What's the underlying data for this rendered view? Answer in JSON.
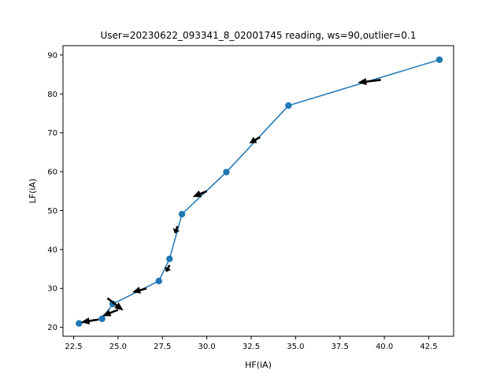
{
  "chart_data": {
    "type": "line",
    "title": "User=20230622_093341_8_02001745 reading, ws=90,outlier=0.1",
    "xlabel": "HF(iA)",
    "ylabel": "LF(iA)",
    "xlim": [
      21.9,
      43.9
    ],
    "ylim": [
      17.7,
      92.4
    ],
    "xticks": [
      "22.5",
      "25.0",
      "27.5",
      "30.0",
      "32.5",
      "35.0",
      "37.5",
      "40.0",
      "42.5"
    ],
    "yticks": [
      "20",
      "30",
      "40",
      "50",
      "60",
      "70",
      "80",
      "90"
    ],
    "grid": false,
    "series": [
      {
        "color": "#1f77b4",
        "marker": "circle",
        "points": [
          {
            "x": 43.1,
            "y": 88.8
          },
          {
            "x": 34.6,
            "y": 77.0
          },
          {
            "x": 31.1,
            "y": 59.9
          },
          {
            "x": 28.6,
            "y": 49.1
          },
          {
            "x": 27.9,
            "y": 37.6
          },
          {
            "x": 27.3,
            "y": 31.9
          },
          {
            "x": 24.7,
            "y": 26.0
          },
          {
            "x": 24.1,
            "y": 22.2
          },
          {
            "x": 22.8,
            "y": 21.0
          }
        ]
      }
    ],
    "arrows": {
      "color": "#000000",
      "items": [
        {
          "x": 39.8,
          "y": 83.6,
          "dx": -1.3,
          "dy": -0.7
        },
        {
          "x": 33.0,
          "y": 68.9,
          "dx": -0.6,
          "dy": -1.6
        },
        {
          "x": 30.0,
          "y": 55.0,
          "dx": -0.8,
          "dy": -1.5
        },
        {
          "x": 28.35,
          "y": 46.0,
          "dx": -0.15,
          "dy": -1.9
        },
        {
          "x": 27.9,
          "y": 36.0,
          "dx": -0.2,
          "dy": -1.8
        },
        {
          "x": 26.6,
          "y": 30.0,
          "dx": -0.8,
          "dy": -1.0
        },
        {
          "x": 24.4,
          "y": 27.5,
          "dx": 0.9,
          "dy": -3.2
        },
        {
          "x": 25.0,
          "y": 24.5,
          "dx": -0.9,
          "dy": -1.6
        },
        {
          "x": 23.9,
          "y": 22.0,
          "dx": -1.0,
          "dy": -0.7
        }
      ]
    }
  }
}
